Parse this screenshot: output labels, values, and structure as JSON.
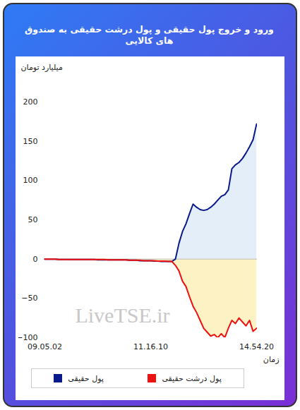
{
  "chart_data": {
    "type": "line",
    "title": "ورود و خروج پول حقیقی و پول درشت حقیقی به صندوق های کالایی",
    "y_label": "میلیارد تومان",
    "x_label": "زمان",
    "watermark": "LiveTSE.ir",
    "categories": [
      "09.05.02",
      null,
      null,
      null,
      null,
      null,
      null,
      null,
      null,
      null,
      null,
      null,
      null,
      null,
      null,
      null,
      null,
      null,
      null,
      null,
      null,
      null,
      null,
      null,
      null,
      null,
      null,
      null,
      null,
      null,
      "11.16.10",
      null,
      null,
      null,
      null,
      null,
      null,
      null,
      null,
      null,
      null,
      null,
      null,
      null,
      null,
      null,
      null,
      null,
      null,
      null,
      null,
      null,
      null,
      null,
      null,
      null,
      null,
      null,
      null,
      null,
      "14.54.20"
    ],
    "series": [
      {
        "name": "پول حقیقی",
        "color": "#0a1a8c",
        "values": [
          0,
          0,
          0,
          0,
          -0.5,
          -0.5,
          -0.5,
          -0.5,
          -0.5,
          -0.5,
          -0.5,
          -0.5,
          -0.5,
          -0.5,
          -0.5,
          -1,
          -1,
          -1,
          -1,
          -1,
          -1,
          -1,
          -1,
          -1,
          -1.5,
          -1.5,
          -1.5,
          -2,
          -2,
          -2,
          -2,
          -2.5,
          -2.5,
          -3,
          -3,
          -3,
          -3,
          0,
          20,
          35,
          45,
          58,
          70,
          66,
          63,
          62,
          63,
          66,
          70,
          75,
          80,
          82,
          88,
          115,
          120,
          123,
          128,
          135,
          143,
          152,
          172
        ]
      },
      {
        "name": "پول درشت حقیقی",
        "color": "#ee1111",
        "values": [
          0,
          0,
          0,
          0,
          -0.5,
          -0.5,
          -0.5,
          -0.5,
          -0.5,
          -0.5,
          -0.5,
          -0.5,
          -0.5,
          -0.5,
          -0.5,
          -0.5,
          -0.5,
          -0.5,
          -1,
          -1,
          -1,
          -1,
          -1,
          -1,
          -1.5,
          -1.5,
          -1.5,
          -1.5,
          -2,
          -2,
          -2,
          -2,
          -2.5,
          -2.5,
          -2.5,
          -3,
          -3,
          -8,
          -15,
          -28,
          -35,
          -48,
          -60,
          -68,
          -78,
          -88,
          -93,
          -98,
          -96,
          -100,
          -95,
          -100,
          -88,
          -78,
          -82,
          -75,
          -80,
          -85,
          -78,
          -92,
          -88
        ]
      }
    ],
    "ylim": [
      -100,
      200
    ],
    "yticks": [
      -100,
      -50,
      0,
      50,
      100,
      150,
      200
    ],
    "grid": false,
    "legend": "bottom"
  }
}
